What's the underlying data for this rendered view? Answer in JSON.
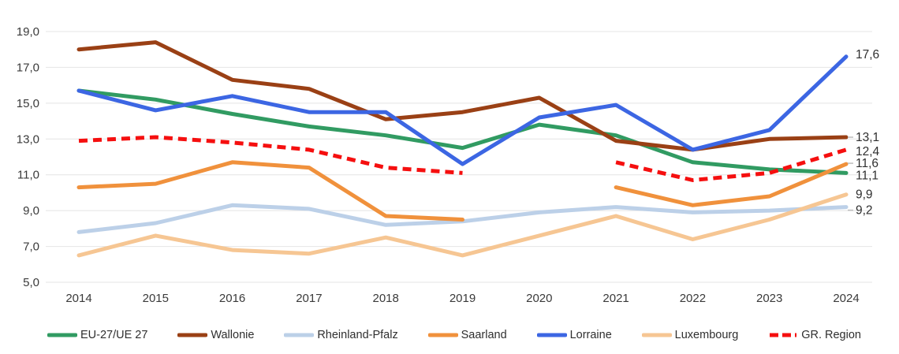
{
  "chart_data": {
    "type": "line",
    "title": "",
    "xlabel": "",
    "ylabel": "",
    "grid": true,
    "legend_position": "bottom",
    "x_categories": [
      "2014",
      "2015",
      "2016",
      "2017",
      "2018",
      "2019",
      "2020",
      "2021",
      "2022",
      "2023",
      "2024"
    ],
    "y_axis": {
      "min": 5.0,
      "max": 19.0,
      "step": 2.0,
      "tick_labels": [
        "19,0",
        "17,0",
        "15,0",
        "13,0",
        "11,0",
        "9,0",
        "7,0",
        "5,0"
      ],
      "tick_values": [
        19,
        17,
        15,
        13,
        11,
        9,
        7,
        5
      ]
    },
    "series": [
      {
        "name": "EU-27/UE 27",
        "color": "#319B62",
        "dashed": false,
        "values": [
          15.7,
          15.2,
          14.4,
          13.7,
          13.2,
          12.5,
          13.8,
          13.2,
          11.7,
          11.3,
          11.1
        ]
      },
      {
        "name": "Wallonie",
        "color": "#9A4015",
        "dashed": false,
        "values": [
          18.0,
          18.4,
          16.3,
          15.8,
          14.1,
          14.5,
          15.3,
          12.9,
          12.4,
          13.0,
          13.1
        ]
      },
      {
        "name": "Rheinland-Pfalz",
        "color": "#BCD0E8",
        "dashed": false,
        "values": [
          7.8,
          8.3,
          9.3,
          9.1,
          8.2,
          8.4,
          8.9,
          9.2,
          8.9,
          9.0,
          9.2
        ]
      },
      {
        "name": "Saarland",
        "color": "#F0913C",
        "dashed": false,
        "values": [
          10.3,
          10.5,
          11.7,
          11.4,
          8.7,
          8.5,
          null,
          10.3,
          9.3,
          9.8,
          11.6
        ]
      },
      {
        "name": "Lorraine",
        "color": "#3C66E3",
        "dashed": false,
        "values": [
          15.7,
          14.6,
          15.4,
          14.5,
          14.5,
          11.6,
          14.2,
          14.9,
          12.4,
          13.5,
          17.6
        ]
      },
      {
        "name": "Luxembourg",
        "color": "#F6C693",
        "dashed": false,
        "values": [
          6.5,
          7.6,
          6.8,
          6.6,
          7.5,
          6.5,
          7.6,
          8.7,
          7.4,
          8.5,
          9.9
        ]
      },
      {
        "name": "GR. Region",
        "color": "#F50F0F",
        "dashed": true,
        "values": [
          12.9,
          13.1,
          12.8,
          12.4,
          11.4,
          11.1,
          null,
          11.7,
          10.7,
          11.1,
          12.4
        ]
      }
    ],
    "end_labels": [
      {
        "text": "17,6",
        "value": 17.6,
        "dy": -3,
        "leader": false
      },
      {
        "text": "13,1",
        "value": 13.1,
        "dy": 0,
        "leader": true
      },
      {
        "text": "12,4",
        "value": 12.4,
        "dy": 2,
        "leader": false
      },
      {
        "text": "11,6",
        "value": 11.6,
        "dy": -1,
        "leader": true
      },
      {
        "text": "11,1",
        "value": 11.1,
        "dy": 3,
        "leader": false
      },
      {
        "text": "9,9",
        "value": 9.9,
        "dy": 0,
        "leader": false
      },
      {
        "text": "9,2",
        "value": 9.2,
        "dy": 4,
        "leader": true
      }
    ]
  },
  "colors": {
    "background": "#FFFFFF",
    "grid": "#E4E4E4",
    "axis_text": "#3A3A3A",
    "label_text": "#2F2F2F"
  }
}
